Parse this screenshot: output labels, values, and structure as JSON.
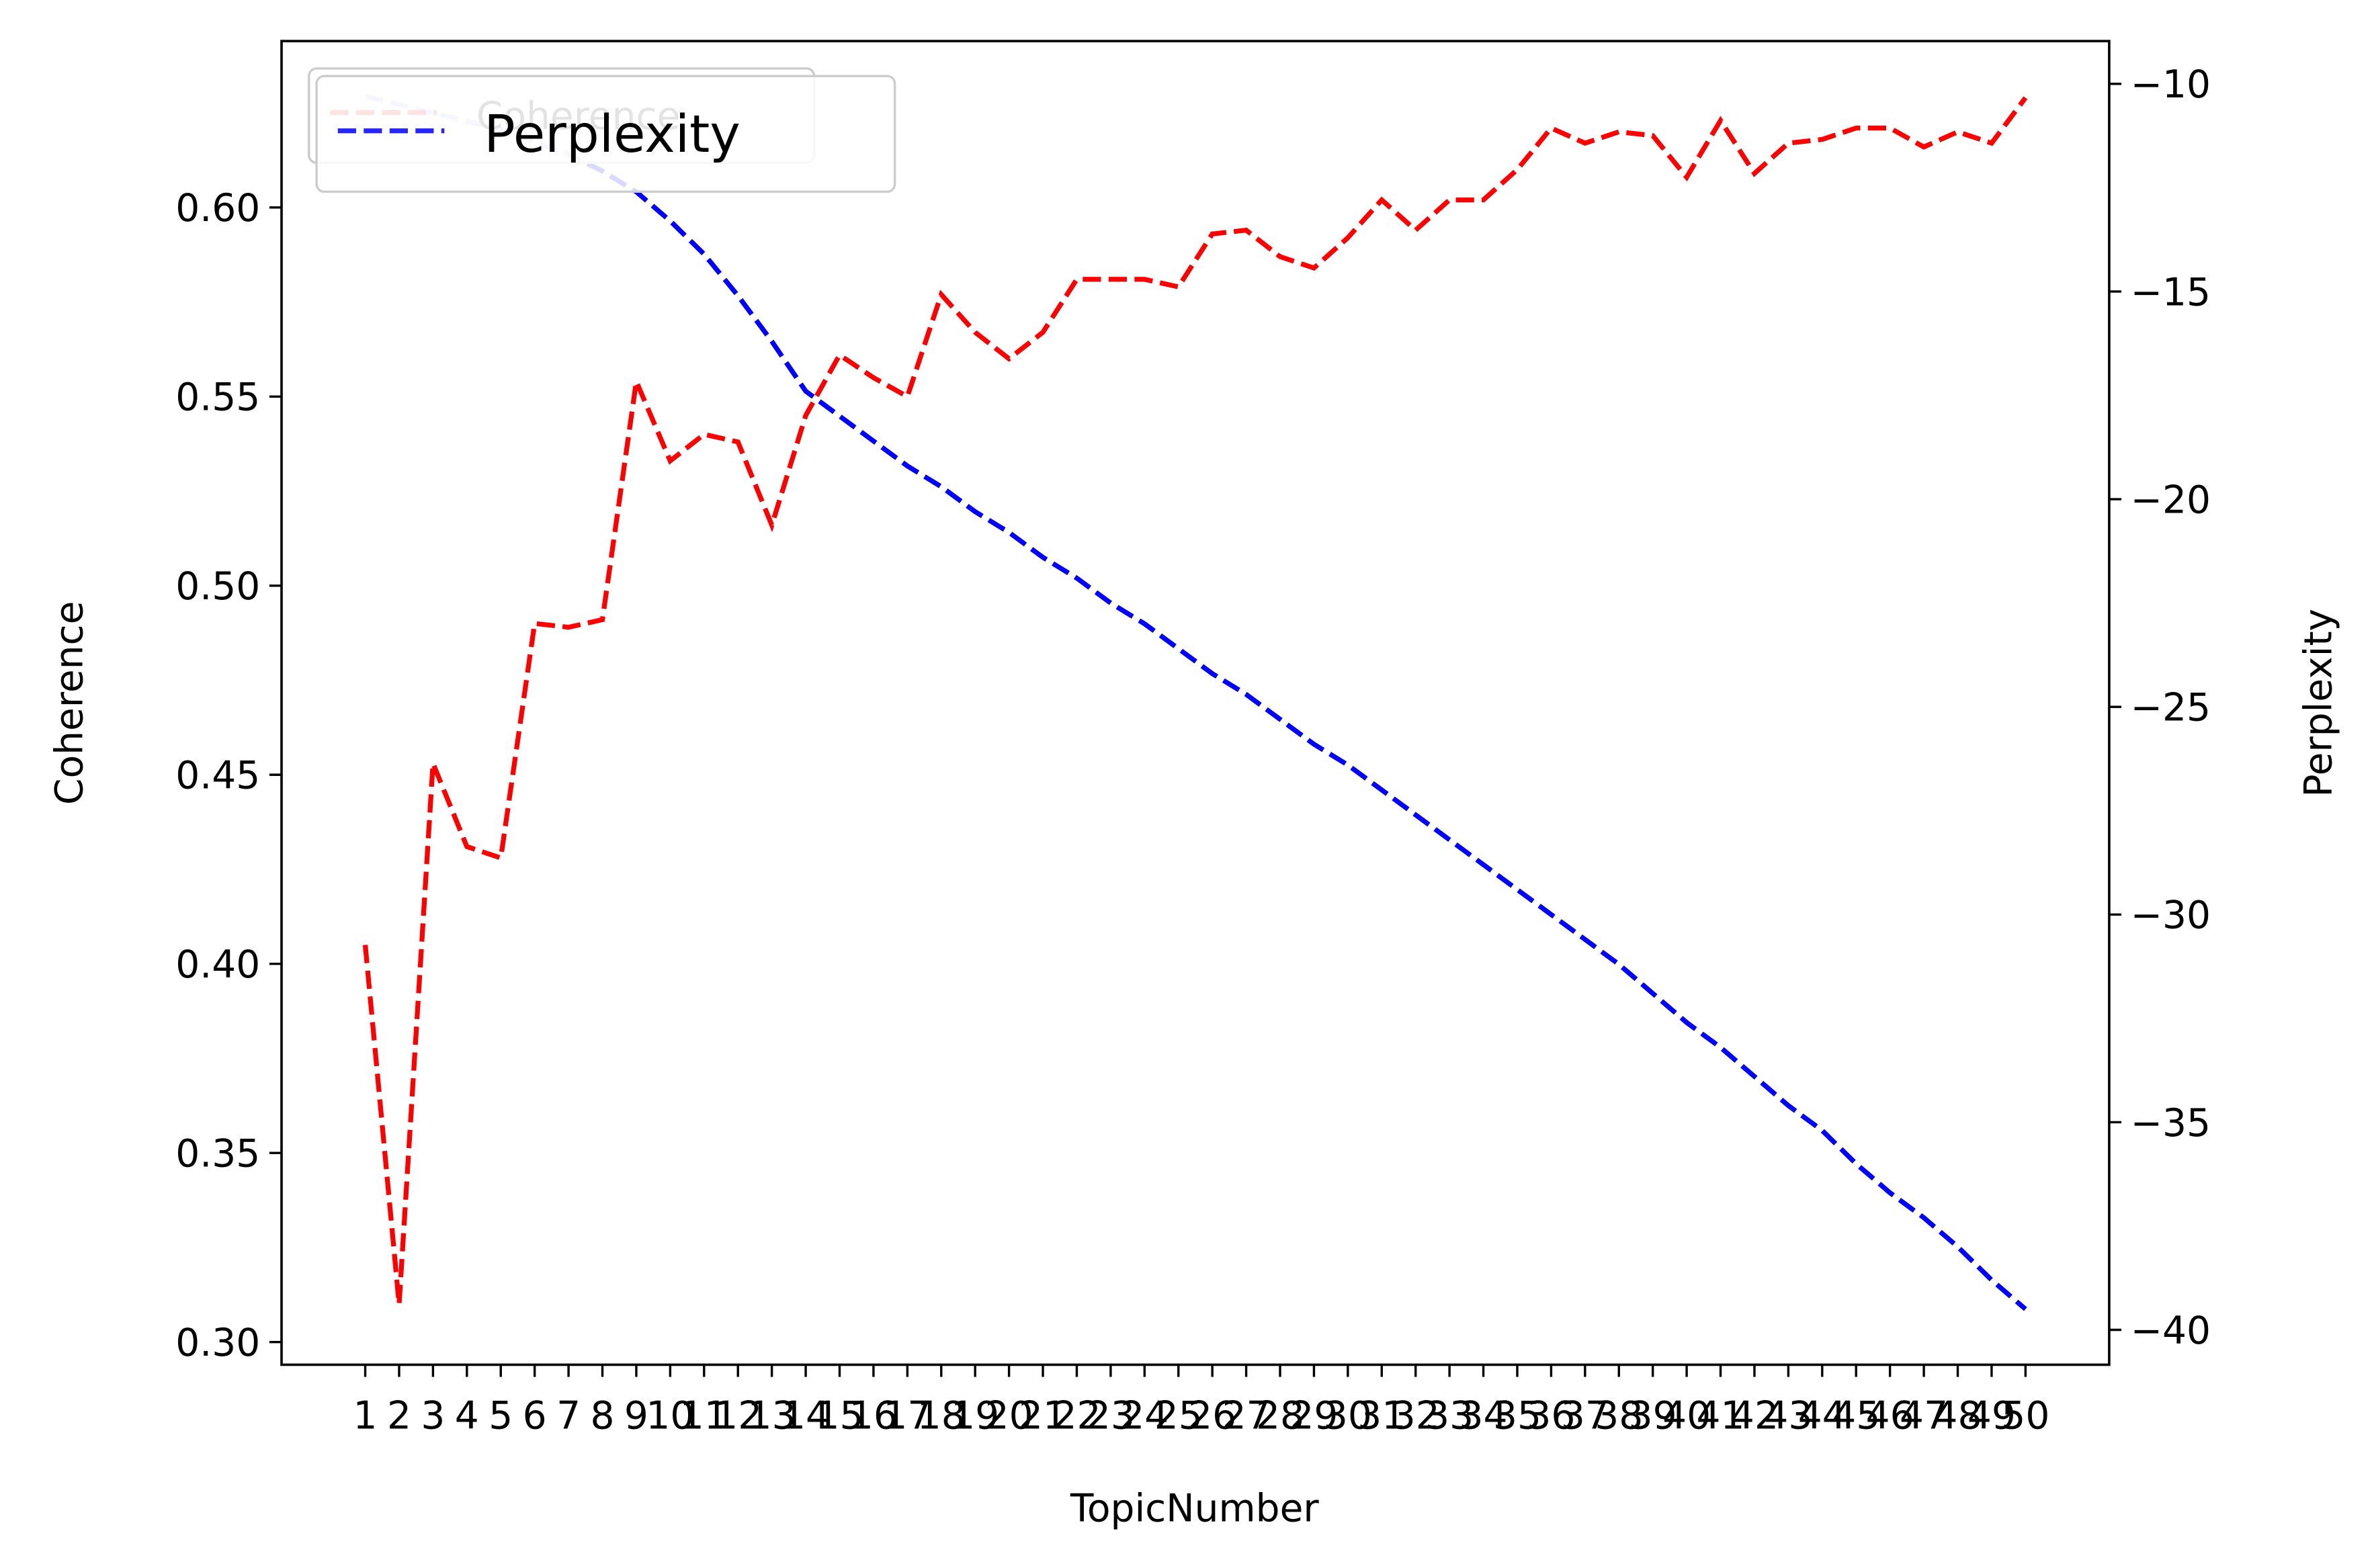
{
  "chart_data": {
    "type": "line",
    "xlabel": "TopicNumber",
    "ylabel": "Coherence",
    "y2label": "Perplexity",
    "x": [
      1,
      2,
      3,
      4,
      5,
      6,
      7,
      8,
      9,
      10,
      11,
      12,
      13,
      14,
      15,
      16,
      17,
      18,
      19,
      20,
      21,
      22,
      23,
      24,
      25,
      26,
      27,
      28,
      29,
      30,
      31,
      32,
      33,
      34,
      35,
      36,
      37,
      38,
      39,
      40,
      41,
      42,
      43,
      44,
      45,
      46,
      47,
      48,
      49,
      50
    ],
    "xticks": [
      1,
      2,
      3,
      4,
      5,
      6,
      7,
      8,
      9,
      10,
      11,
      12,
      13,
      14,
      15,
      16,
      17,
      18,
      19,
      20,
      21,
      22,
      23,
      24,
      25,
      26,
      27,
      28,
      29,
      30,
      31,
      32,
      33,
      34,
      35,
      36,
      37,
      38,
      39,
      40,
      41,
      42,
      43,
      44,
      45,
      46,
      47,
      48,
      49,
      50
    ],
    "xlim": [
      -1.47,
      52.47
    ],
    "ylim": [
      0.294,
      0.644
    ],
    "yticks": [
      {
        "value": 0.3,
        "label": "0.30"
      },
      0.35,
      {
        "value": 0.4,
        "label": "0.40"
      },
      0.45,
      {
        "value": 0.5,
        "label": "0.50"
      },
      0.55,
      {
        "value": 0.6,
        "label": "0.60"
      }
    ],
    "y2lim": [
      -40.84,
      -8.97
    ],
    "y2ticks": [
      {
        "value": -40,
        "label": "−40"
      },
      {
        "value": -35,
        "label": "−35"
      },
      {
        "value": -30,
        "label": "−30"
      },
      {
        "value": -25,
        "label": "−25"
      },
      {
        "value": -20,
        "label": "−20"
      },
      {
        "value": -15,
        "label": "−15"
      },
      {
        "value": -10,
        "label": "−10"
      }
    ],
    "series": [
      {
        "name": "Coherence",
        "color": "#ff0000",
        "values": [
          0.405,
          0.31,
          0.453,
          0.431,
          0.428,
          0.49,
          0.489,
          0.491,
          0.554,
          0.533,
          0.54,
          0.538,
          0.516,
          0.545,
          0.561,
          0.555,
          0.55,
          0.577,
          0.567,
          0.56,
          0.567,
          0.581,
          0.581,
          0.581,
          0.579,
          0.593,
          0.594,
          0.587,
          0.584,
          0.592,
          0.602,
          0.594,
          0.602,
          0.602,
          0.61,
          0.621,
          0.617,
          0.62,
          0.619,
          0.608,
          0.623,
          0.609,
          0.617,
          0.618,
          0.621,
          0.621,
          0.616,
          0.62,
          0.617,
          0.629
        ]
      },
      {
        "name": "Perplexity",
        "color": "#0000ff",
        "axis": "y2",
        "values": [
          -10.3,
          -10.5,
          -10.7,
          -10.9,
          -11.1,
          -11.4,
          -11.7,
          -12.1,
          -12.6,
          -13.3,
          -14.1,
          -15.1,
          -16.2,
          -17.4,
          -18.0,
          -18.6,
          -19.2,
          -19.7,
          -20.3,
          -20.8,
          -21.4,
          -21.9,
          -22.5,
          -23.0,
          -23.6,
          -24.2,
          -24.7,
          -25.3,
          -25.9,
          -26.4,
          -27.0,
          -27.6,
          -28.2,
          -28.8,
          -29.4,
          -30.0,
          -30.6,
          -31.2,
          -31.9,
          -32.6,
          -33.2,
          -33.9,
          -34.6,
          -35.2,
          -36.0,
          -36.7,
          -37.3,
          -38.0,
          -38.8,
          -39.5
        ]
      }
    ]
  }
}
